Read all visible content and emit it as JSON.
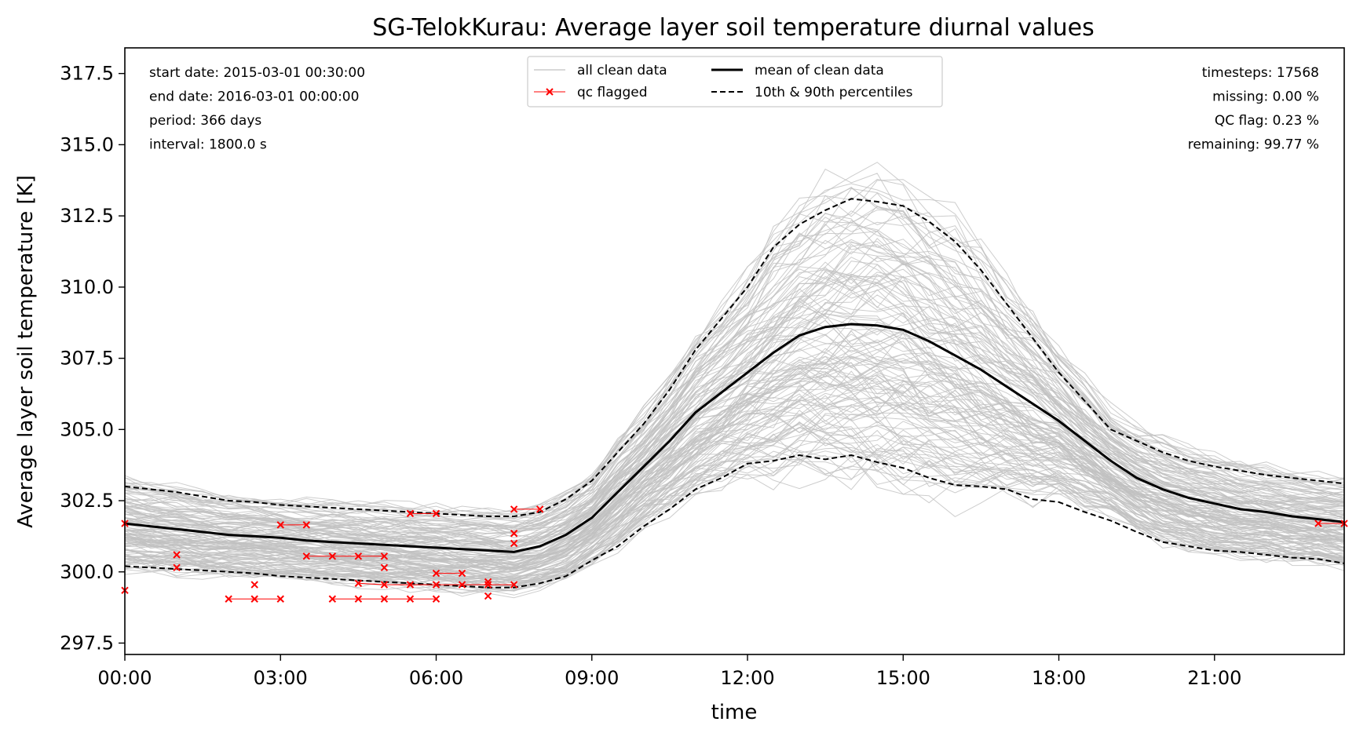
{
  "chart_data": {
    "type": "line",
    "title": "SG-TelokKurau: Average layer soil temperature diurnal values",
    "xlabel": "time",
    "ylabel": "Average layer soil temperature [K]",
    "xlim": [
      0,
      23.5
    ],
    "ylim": [
      297.1,
      318.4
    ],
    "x_ticks": [
      "00:00",
      "03:00",
      "06:00",
      "09:00",
      "12:00",
      "15:00",
      "18:00",
      "21:00"
    ],
    "y_ticks": [
      "297.5",
      "300.0",
      "302.5",
      "305.0",
      "307.5",
      "310.0",
      "312.5",
      "315.0",
      "317.5"
    ],
    "x": [
      0,
      0.5,
      1,
      1.5,
      2,
      2.5,
      3,
      3.5,
      4,
      4.5,
      5,
      5.5,
      6,
      6.5,
      7,
      7.5,
      8,
      8.5,
      9,
      9.5,
      10,
      10.5,
      11,
      11.5,
      12,
      12.5,
      13,
      13.5,
      14,
      14.5,
      15,
      15.5,
      16,
      16.5,
      17,
      17.5,
      18,
      18.5,
      19,
      19.5,
      20,
      20.5,
      21,
      21.5,
      22,
      22.5,
      23,
      23.5
    ],
    "series": [
      {
        "name": "mean of clean data",
        "style": "solid",
        "color": "#000000",
        "values": [
          301.7,
          301.6,
          301.5,
          301.4,
          301.3,
          301.25,
          301.2,
          301.1,
          301.05,
          301.0,
          300.95,
          300.9,
          300.85,
          300.8,
          300.75,
          300.7,
          300.9,
          301.3,
          301.9,
          302.8,
          303.7,
          304.6,
          305.6,
          306.3,
          307.0,
          307.7,
          308.3,
          308.6,
          308.7,
          308.65,
          308.5,
          308.1,
          307.6,
          307.1,
          306.5,
          305.9,
          305.3,
          304.6,
          303.9,
          303.3,
          302.9,
          302.6,
          302.4,
          302.2,
          302.1,
          301.95,
          301.85,
          301.75
        ]
      },
      {
        "name": "10th & 90th percentiles",
        "style": "dashed",
        "color": "#000000",
        "values": [
          303.0,
          302.9,
          302.8,
          302.65,
          302.5,
          302.45,
          302.35,
          302.3,
          302.25,
          302.2,
          302.15,
          302.1,
          302.05,
          302.0,
          301.95,
          301.95,
          302.1,
          302.55,
          303.2,
          304.2,
          305.2,
          306.4,
          307.8,
          308.9,
          310.0,
          311.4,
          312.2,
          312.7,
          313.1,
          313.0,
          312.85,
          312.3,
          311.6,
          310.6,
          309.4,
          308.2,
          307.0,
          306.0,
          305.0,
          304.6,
          304.2,
          303.9,
          303.7,
          303.55,
          303.4,
          303.3,
          303.2,
          303.1
        ]
      },
      {
        "name": "10th & 90th percentiles",
        "style": "dashed",
        "color": "#000000",
        "values": [
          300.2,
          300.15,
          300.1,
          300.05,
          300.0,
          299.95,
          299.85,
          299.8,
          299.75,
          299.7,
          299.65,
          299.6,
          299.55,
          299.5,
          299.45,
          299.45,
          299.6,
          299.85,
          300.4,
          300.9,
          301.6,
          302.2,
          302.9,
          303.3,
          303.8,
          303.9,
          304.1,
          303.95,
          304.1,
          303.85,
          303.65,
          303.3,
          303.05,
          303.0,
          302.9,
          302.55,
          302.45,
          302.1,
          301.8,
          301.4,
          301.05,
          300.9,
          300.75,
          300.7,
          300.6,
          300.5,
          300.45,
          300.3
        ]
      }
    ],
    "qc_flagged": {
      "name": "qc flagged",
      "color": "#ff0000",
      "points": [
        [
          0,
          301.7
        ],
        [
          0,
          299.35
        ],
        [
          1,
          300.6
        ],
        [
          1,
          300.15
        ],
        [
          2,
          299.05
        ],
        [
          2.5,
          299.05
        ],
        [
          2.5,
          299.55
        ],
        [
          3,
          299.05
        ],
        [
          3,
          301.65
        ],
        [
          3.5,
          301.65
        ],
        [
          3.5,
          300.55
        ],
        [
          4,
          300.55
        ],
        [
          4,
          299.05
        ],
        [
          4.5,
          300.55
        ],
        [
          4.5,
          299.6
        ],
        [
          4.5,
          299.05
        ],
        [
          5,
          300.55
        ],
        [
          5,
          300.15
        ],
        [
          5,
          299.55
        ],
        [
          5,
          299.05
        ],
        [
          5.5,
          302.05
        ],
        [
          5.5,
          299.55
        ],
        [
          5.5,
          299.05
        ],
        [
          6,
          302.05
        ],
        [
          6,
          299.95
        ],
        [
          6,
          299.55
        ],
        [
          6,
          299.05
        ],
        [
          6.5,
          299.95
        ],
        [
          6.5,
          299.55
        ],
        [
          7,
          299.65
        ],
        [
          7,
          299.55
        ],
        [
          7,
          299.15
        ],
        [
          7.5,
          302.2
        ],
        [
          7.5,
          301.35
        ],
        [
          7.5,
          301.0
        ],
        [
          7.5,
          299.55
        ],
        [
          8,
          302.2
        ],
        [
          23,
          301.7
        ],
        [
          23.5,
          301.7
        ]
      ],
      "segments": [
        [
          [
            3,
            301.65
          ],
          [
            3.5,
            301.65
          ]
        ],
        [
          [
            3.5,
            300.55
          ],
          [
            4,
            300.55
          ]
        ],
        [
          [
            4,
            300.55
          ],
          [
            4.5,
            300.55
          ]
        ],
        [
          [
            4.5,
            300.55
          ],
          [
            5,
            300.55
          ]
        ],
        [
          [
            2,
            299.05
          ],
          [
            2.5,
            299.05
          ]
        ],
        [
          [
            2.5,
            299.05
          ],
          [
            3,
            299.05
          ]
        ],
        [
          [
            4,
            299.05
          ],
          [
            4.5,
            299.05
          ]
        ],
        [
          [
            4.5,
            299.05
          ],
          [
            5,
            299.05
          ]
        ],
        [
          [
            5,
            299.05
          ],
          [
            5.5,
            299.05
          ]
        ],
        [
          [
            5.5,
            299.05
          ],
          [
            6,
            299.05
          ]
        ],
        [
          [
            4.5,
            299.6
          ],
          [
            5,
            299.55
          ]
        ],
        [
          [
            5,
            299.55
          ],
          [
            5.5,
            299.55
          ]
        ],
        [
          [
            5.5,
            299.55
          ],
          [
            6,
            299.55
          ]
        ],
        [
          [
            6,
            299.95
          ],
          [
            6.5,
            299.95
          ]
        ],
        [
          [
            6,
            299.55
          ],
          [
            6.5,
            299.55
          ]
        ],
        [
          [
            6.5,
            299.55
          ],
          [
            7,
            299.55
          ]
        ],
        [
          [
            7,
            299.55
          ],
          [
            7.5,
            299.55
          ]
        ],
        [
          [
            7.5,
            302.2
          ],
          [
            8,
            302.2
          ]
        ],
        [
          [
            5.5,
            302.05
          ],
          [
            6,
            302.05
          ]
        ],
        [
          [
            23,
            301.7
          ],
          [
            23.5,
            301.7
          ]
        ]
      ]
    },
    "clean_data_color": "#c0c0c0",
    "grid": false,
    "legend": {
      "position": "top-center",
      "entries": [
        "all clean data",
        "qc flagged",
        "mean of clean data",
        "10th & 90th percentiles"
      ]
    },
    "info_left": [
      "start date: 2015-03-01 00:30:00",
      "end date: 2016-03-01 00:00:00",
      "period: 366 days",
      "interval: 1800.0 s"
    ],
    "info_right": [
      "timesteps: 17568",
      "missing: 0.00 %",
      "QC flag: 0.23 %",
      "remaining: 99.77 %"
    ]
  }
}
